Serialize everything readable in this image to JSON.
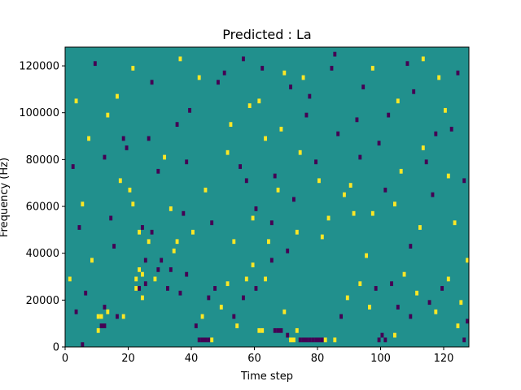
{
  "chart_data": {
    "type": "heatmap",
    "title": "Predicted : La",
    "xlabel": "Time step",
    "ylabel": "Frequency (Hz)",
    "xlim": [
      0,
      128
    ],
    "ylim": [
      0,
      128000
    ],
    "x_ticks": [
      0,
      20,
      40,
      60,
      80,
      100,
      120
    ],
    "y_ticks": [
      0,
      20000,
      40000,
      60000,
      80000,
      100000,
      120000
    ],
    "y_tick_labels": [
      "0",
      "20000",
      "40000",
      "60000",
      "80000",
      "100000",
      "120000"
    ],
    "grid": false,
    "colors": {
      "background": "#21908d",
      "low": "#440154",
      "high": "#fde725"
    },
    "freq_bin_hz": 2000,
    "cells": [
      [
        5,
        0,
        1
      ],
      [
        10,
        6,
        2
      ],
      [
        11,
        4,
        1
      ],
      [
        11,
        6,
        2
      ],
      [
        12,
        4,
        1
      ],
      [
        10,
        3,
        2
      ],
      [
        12,
        8,
        1
      ],
      [
        13,
        7,
        2
      ],
      [
        16,
        6,
        1
      ],
      [
        18,
        6,
        2
      ],
      [
        22,
        12,
        2
      ],
      [
        22,
        14,
        2
      ],
      [
        23,
        12,
        1
      ],
      [
        23,
        16,
        2
      ],
      [
        24,
        10,
        2
      ],
      [
        24,
        15,
        2
      ],
      [
        25,
        13,
        1
      ],
      [
        25,
        18,
        1
      ],
      [
        26,
        22,
        2
      ],
      [
        27,
        24,
        1
      ],
      [
        23,
        24,
        2
      ],
      [
        24,
        25,
        1
      ],
      [
        29,
        16,
        1
      ],
      [
        30,
        18,
        1
      ],
      [
        28,
        14,
        2
      ],
      [
        32,
        12,
        1
      ],
      [
        33,
        16,
        1
      ],
      [
        34,
        20,
        2
      ],
      [
        35,
        22,
        2
      ],
      [
        37,
        28,
        1
      ],
      [
        36,
        11,
        1
      ],
      [
        38,
        15,
        1
      ],
      [
        42,
        1,
        1
      ],
      [
        43,
        1,
        1
      ],
      [
        44,
        1,
        1
      ],
      [
        45,
        1,
        1
      ],
      [
        46,
        1,
        2
      ],
      [
        41,
        4,
        1
      ],
      [
        43,
        6,
        2
      ],
      [
        45,
        10,
        1
      ],
      [
        47,
        12,
        1
      ],
      [
        49,
        8,
        2
      ],
      [
        51,
        13,
        2
      ],
      [
        53,
        6,
        1
      ],
      [
        54,
        4,
        2
      ],
      [
        56,
        10,
        1
      ],
      [
        57,
        14,
        2
      ],
      [
        59,
        17,
        2
      ],
      [
        60,
        12,
        1
      ],
      [
        61,
        3,
        2
      ],
      [
        62,
        3,
        2
      ],
      [
        63,
        14,
        2
      ],
      [
        64,
        22,
        2
      ],
      [
        65,
        18,
        1
      ],
      [
        66,
        3,
        1
      ],
      [
        67,
        3,
        1
      ],
      [
        68,
        3,
        1
      ],
      [
        69,
        7,
        2
      ],
      [
        70,
        2,
        1
      ],
      [
        71,
        1,
        2
      ],
      [
        72,
        1,
        2
      ],
      [
        73,
        3,
        2
      ],
      [
        74,
        1,
        1
      ],
      [
        75,
        1,
        1
      ],
      [
        76,
        1,
        1
      ],
      [
        77,
        1,
        1
      ],
      [
        78,
        1,
        1
      ],
      [
        79,
        1,
        1
      ],
      [
        80,
        1,
        1
      ],
      [
        81,
        1,
        1
      ],
      [
        82,
        1,
        2
      ],
      [
        85,
        1,
        2
      ],
      [
        87,
        6,
        1
      ],
      [
        89,
        10,
        2
      ],
      [
        93,
        13,
        2
      ],
      [
        96,
        8,
        2
      ],
      [
        98,
        12,
        1
      ],
      [
        99,
        1,
        1
      ],
      [
        100,
        2,
        1
      ],
      [
        101,
        1,
        1
      ],
      [
        103,
        13,
        1
      ],
      [
        104,
        2,
        2
      ],
      [
        105,
        8,
        1
      ],
      [
        107,
        15,
        2
      ],
      [
        109,
        6,
        1
      ],
      [
        111,
        11,
        2
      ],
      [
        115,
        9,
        1
      ],
      [
        117,
        7,
        2
      ],
      [
        119,
        12,
        1
      ],
      [
        121,
        14,
        2
      ],
      [
        124,
        4,
        2
      ],
      [
        126,
        1,
        1
      ],
      [
        127,
        5,
        1
      ],
      [
        125,
        9,
        2
      ],
      [
        6,
        11,
        1
      ],
      [
        8,
        18,
        2
      ],
      [
        14,
        27,
        1
      ],
      [
        17,
        35,
        2
      ],
      [
        19,
        42,
        1
      ],
      [
        21,
        30,
        2
      ],
      [
        26,
        44,
        1
      ],
      [
        31,
        40,
        2
      ],
      [
        39,
        50,
        1
      ],
      [
        44,
        33,
        2
      ],
      [
        48,
        56,
        1
      ],
      [
        52,
        47,
        2
      ],
      [
        55,
        38,
        1
      ],
      [
        58,
        51,
        2
      ],
      [
        60,
        29,
        1
      ],
      [
        63,
        44,
        2
      ],
      [
        66,
        36,
        1
      ],
      [
        69,
        58,
        2
      ],
      [
        72,
        31,
        1
      ],
      [
        74,
        41,
        2
      ],
      [
        77,
        53,
        1
      ],
      [
        83,
        27,
        2
      ],
      [
        86,
        45,
        1
      ],
      [
        90,
        34,
        2
      ],
      [
        94,
        55,
        1
      ],
      [
        97,
        28,
        2
      ],
      [
        102,
        49,
        1
      ],
      [
        106,
        37,
        2
      ],
      [
        108,
        60,
        1
      ],
      [
        113,
        42,
        2
      ],
      [
        116,
        32,
        1
      ],
      [
        118,
        57,
        2
      ],
      [
        122,
        46,
        1
      ],
      [
        123,
        26,
        2
      ],
      [
        2,
        38,
        1
      ],
      [
        3,
        52,
        2
      ],
      [
        4,
        25,
        1
      ],
      [
        7,
        44,
        2
      ],
      [
        9,
        60,
        1
      ],
      [
        13,
        49,
        2
      ],
      [
        15,
        21,
        1
      ],
      [
        20,
        33,
        2
      ],
      [
        27,
        56,
        1
      ],
      [
        33,
        29,
        2
      ],
      [
        35,
        47,
        1
      ],
      [
        40,
        24,
        2
      ],
      [
        50,
        58,
        1
      ],
      [
        53,
        22,
        2
      ],
      [
        57,
        35,
        1
      ],
      [
        61,
        52,
        2
      ],
      [
        65,
        26,
        1
      ],
      [
        68,
        46,
        2
      ],
      [
        70,
        20,
        1
      ],
      [
        75,
        57,
        2
      ],
      [
        79,
        39,
        1
      ],
      [
        81,
        23,
        2
      ],
      [
        84,
        59,
        1
      ],
      [
        88,
        32,
        2
      ],
      [
        92,
        48,
        1
      ],
      [
        95,
        19,
        2
      ],
      [
        99,
        43,
        1
      ],
      [
        104,
        30,
        2
      ],
      [
        110,
        54,
        1
      ],
      [
        112,
        25,
        2
      ],
      [
        114,
        39,
        1
      ],
      [
        120,
        50,
        2
      ],
      [
        126,
        35,
        1
      ],
      [
        127,
        18,
        2
      ],
      [
        1,
        14,
        2
      ],
      [
        3,
        7,
        1
      ],
      [
        5,
        30,
        2
      ],
      [
        12,
        40,
        1
      ],
      [
        16,
        53,
        2
      ],
      [
        18,
        44,
        1
      ],
      [
        21,
        59,
        2
      ],
      [
        29,
        37,
        1
      ],
      [
        36,
        61,
        2
      ],
      [
        38,
        39,
        1
      ],
      [
        42,
        57,
        2
      ],
      [
        46,
        26,
        1
      ],
      [
        51,
        41,
        2
      ],
      [
        56,
        61,
        1
      ],
      [
        59,
        27,
        2
      ],
      [
        62,
        59,
        1
      ],
      [
        67,
        33,
        2
      ],
      [
        71,
        55,
        1
      ],
      [
        73,
        24,
        2
      ],
      [
        76,
        49,
        1
      ],
      [
        80,
        35,
        2
      ],
      [
        85,
        62,
        1
      ],
      [
        91,
        28,
        2
      ],
      [
        93,
        40,
        1
      ],
      [
        97,
        59,
        2
      ],
      [
        101,
        33,
        1
      ],
      [
        105,
        52,
        2
      ],
      [
        109,
        21,
        1
      ],
      [
        113,
        61,
        2
      ],
      [
        117,
        45,
        1
      ],
      [
        121,
        36,
        2
      ],
      [
        124,
        58,
        1
      ]
    ]
  }
}
